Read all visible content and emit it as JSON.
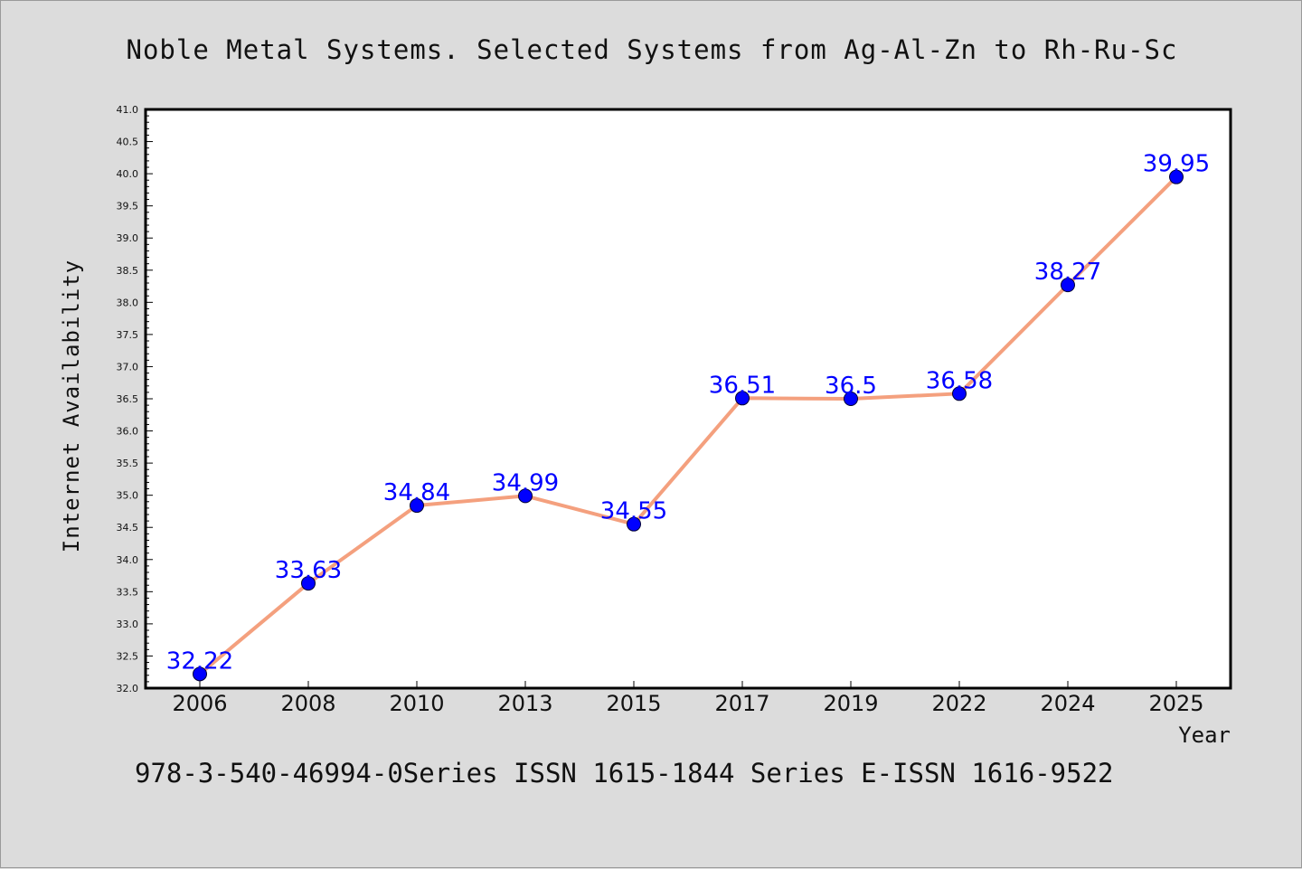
{
  "chart_data": {
    "type": "line",
    "title": "Noble Metal Systems. Selected Systems from Ag-Al-Zn to Rh-Ru-Sc",
    "xlabel": "Year",
    "ylabel": "Internet Availability",
    "categories": [
      "2006",
      "2008",
      "2010",
      "2013",
      "2015",
      "2017",
      "2019",
      "2022",
      "2024",
      "2025"
    ],
    "series": [
      {
        "values": [
          32.22,
          33.63,
          34.84,
          34.99,
          34.55,
          36.51,
          36.5,
          36.58,
          38.27,
          39.95
        ],
        "labels": [
          "32.22",
          "33.63",
          "34.84",
          "34.99",
          "34.55",
          "36.51",
          "36.5",
          "36.58",
          "38.27",
          "39.95"
        ],
        "line_color": "#f4a07e",
        "marker_color": "#0000ff"
      }
    ],
    "ylim": [
      32.0,
      41.0
    ],
    "ytick_labels": [
      "32.0",
      "32.5",
      "33.0",
      "33.5",
      "34.0",
      "34.5",
      "35.0",
      "35.5",
      "36.0",
      "36.5",
      "37.0",
      "37.5",
      "38.0",
      "38.5",
      "39.0",
      "39.5",
      "40.0",
      "40.5",
      "41.0"
    ],
    "grid": false,
    "footer": "978-3-540-46994-0Series ISSN 1615-1844 Series E-ISSN 1616-9522"
  },
  "colors": {
    "background": "#dcdcdc",
    "plot_background": "#ffffff",
    "line": "#f4a07e",
    "marker": "#0000ff",
    "data_label": "#0000ff"
  }
}
